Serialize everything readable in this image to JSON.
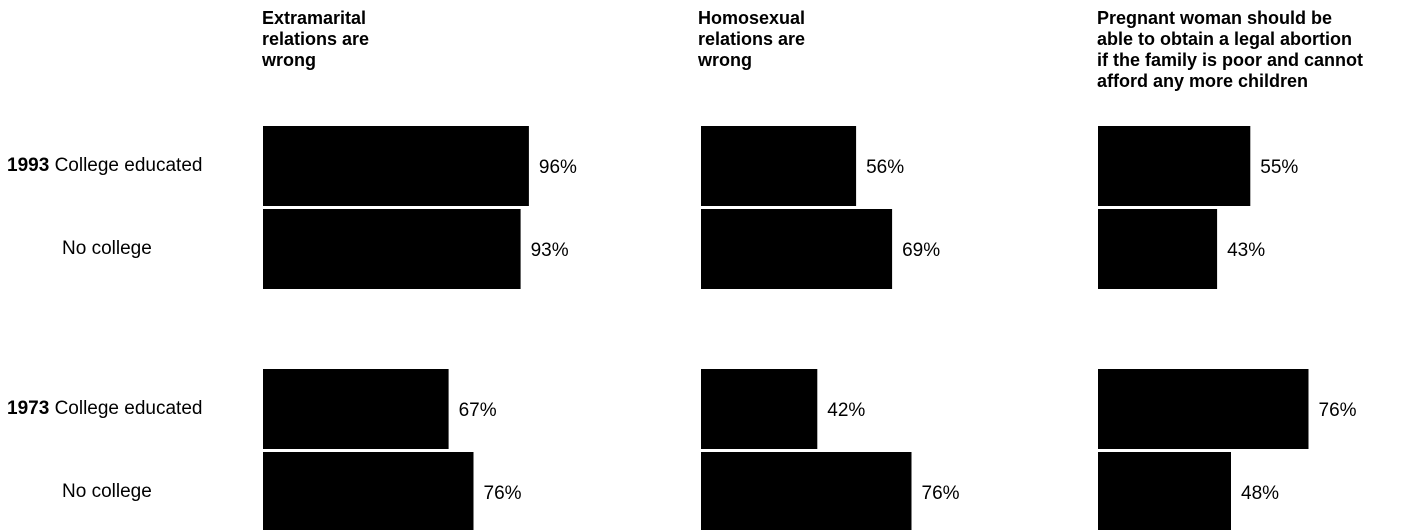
{
  "chart_data": {
    "type": "bar",
    "orientation": "horizontal",
    "panels": [
      {
        "title_lines": [
          "Extramarital",
          "relations are",
          "wrong"
        ]
      },
      {
        "title_lines": [
          "Homosexual",
          "relations are",
          "wrong"
        ]
      },
      {
        "title_lines": [
          "Pregnant woman should be",
          "able to obtain a legal abortion",
          "if the family is poor and cannot",
          "afford any more children"
        ]
      }
    ],
    "groups": [
      {
        "year": "1993",
        "rows": [
          {
            "label": "College educated",
            "values": [
              96,
              56,
              55
            ],
            "value_labels": [
              "96%",
              "56%",
              "55%"
            ]
          },
          {
            "label": "No college",
            "values": [
              93,
              69,
              43
            ],
            "value_labels": [
              "93%",
              "69%",
              "43%"
            ]
          }
        ]
      },
      {
        "year": "1973",
        "rows": [
          {
            "label": "College educated",
            "values": [
              67,
              42,
              76
            ],
            "value_labels": [
              "67%",
              "42%",
              "76%"
            ]
          },
          {
            "label": "No college",
            "values": [
              76,
              76,
              48
            ],
            "value_labels": [
              "76%",
              "76%",
              "48%"
            ]
          }
        ]
      }
    ],
    "bar_color": "#000000",
    "grid": false,
    "legend": "none"
  }
}
